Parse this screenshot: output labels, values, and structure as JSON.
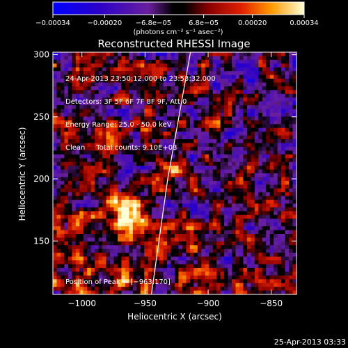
{
  "chart_data": {
    "type": "heatmap",
    "title": "Reconstructed RHESSI Image",
    "xlabel": "Heliocentric X (arcsec)",
    "ylabel": "Heliocentric Y (arcsec)",
    "xlim": [
      -1023,
      -830
    ],
    "ylim": [
      107,
      302
    ],
    "x_ticks": [
      -1000,
      -950,
      -900,
      -850
    ],
    "x_tick_labels": [
      "−1000",
      "−950",
      "−900",
      "−850"
    ],
    "y_ticks": [
      150,
      200,
      250,
      300
    ],
    "y_tick_labels": [
      "150",
      "200",
      "250",
      "300"
    ],
    "colorbar": {
      "min": -0.00034,
      "max": 0.00034,
      "ticks": [
        -0.00034,
        -0.0002,
        -6.8e-05,
        6.8e-05,
        0.0002,
        0.00034
      ],
      "tick_labels": [
        "−0.00034",
        "−0.00020",
        "−6.8e−05",
        "6.8e−05",
        "0.00020",
        "0.00034"
      ],
      "unit_label": "(photons cm⁻² s⁻¹ asec⁻²)"
    },
    "peak": {
      "x": -963,
      "y": 170
    },
    "limb_points": [
      {
        "x": -945,
        "y": 107
      },
      {
        "x": -932,
        "y": 200
      },
      {
        "x": -914,
        "y": 302
      }
    ]
  },
  "info_lines": [
    "24-Apr-2013 23:50:12.000 to 23:53:32.000",
    "Detectors: 3F 5F 6F 7F 8F 9F, Att 0",
    "Energy Range: 25.0 - 50.0 keV",
    "Clean     Total counts: 9.10E+03"
  ],
  "peak_label": "Position of Peak = [−963,170]",
  "footer_timestamp": "25-Apr-2013 03:33"
}
